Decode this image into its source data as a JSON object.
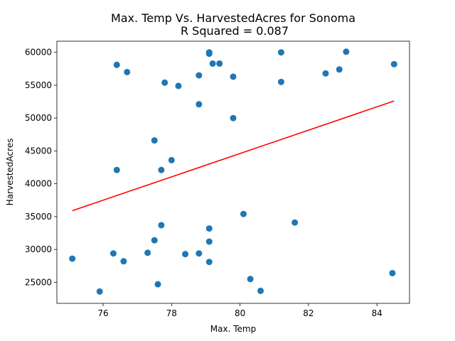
{
  "chart_data": {
    "type": "scatter",
    "title": "Max. Temp Vs. HarvestedAcres for Sonoma",
    "subtitle": "R Squared =  0.087",
    "xlabel": "Max. Temp",
    "ylabel": "HarvestedAcres",
    "xlim": [
      74.65,
      84.95
    ],
    "ylim": [
      21800,
      61700
    ],
    "xticks": [
      76,
      78,
      80,
      82,
      84
    ],
    "yticks": [
      25000,
      30000,
      35000,
      40000,
      45000,
      50000,
      55000,
      60000
    ],
    "xtick_labels": [
      "76",
      "78",
      "80",
      "82",
      "84"
    ],
    "ytick_labels": [
      "25000",
      "30000",
      "35000",
      "40000",
      "45000",
      "50000",
      "55000",
      "60000"
    ],
    "grid": false,
    "marker_color": "#1f77b4",
    "line_color": "#ff0000",
    "points": [
      {
        "x": 75.1,
        "y": 28600
      },
      {
        "x": 75.9,
        "y": 23600
      },
      {
        "x": 76.3,
        "y": 29400
      },
      {
        "x": 76.4,
        "y": 58100
      },
      {
        "x": 76.4,
        "y": 42100
      },
      {
        "x": 76.6,
        "y": 28200
      },
      {
        "x": 76.7,
        "y": 57000
      },
      {
        "x": 77.3,
        "y": 29500
      },
      {
        "x": 77.5,
        "y": 46600
      },
      {
        "x": 77.5,
        "y": 31400
      },
      {
        "x": 77.6,
        "y": 24700
      },
      {
        "x": 77.7,
        "y": 42100
      },
      {
        "x": 77.7,
        "y": 33700
      },
      {
        "x": 77.8,
        "y": 55400
      },
      {
        "x": 78.0,
        "y": 43600
      },
      {
        "x": 78.2,
        "y": 54900
      },
      {
        "x": 78.4,
        "y": 29300
      },
      {
        "x": 78.8,
        "y": 56500
      },
      {
        "x": 78.8,
        "y": 52100
      },
      {
        "x": 78.8,
        "y": 29400
      },
      {
        "x": 79.1,
        "y": 60000
      },
      {
        "x": 79.1,
        "y": 59800
      },
      {
        "x": 79.1,
        "y": 33200
      },
      {
        "x": 79.1,
        "y": 31200
      },
      {
        "x": 79.1,
        "y": 28100
      },
      {
        "x": 79.2,
        "y": 58300
      },
      {
        "x": 79.4,
        "y": 58300
      },
      {
        "x": 79.8,
        "y": 56300
      },
      {
        "x": 79.8,
        "y": 50000
      },
      {
        "x": 80.1,
        "y": 35400
      },
      {
        "x": 80.3,
        "y": 25500
      },
      {
        "x": 80.6,
        "y": 23700
      },
      {
        "x": 81.2,
        "y": 60000
      },
      {
        "x": 81.2,
        "y": 55500
      },
      {
        "x": 81.6,
        "y": 34100
      },
      {
        "x": 82.5,
        "y": 56800
      },
      {
        "x": 82.9,
        "y": 57400
      },
      {
        "x": 83.1,
        "y": 60100
      },
      {
        "x": 84.45,
        "y": 26400
      },
      {
        "x": 84.5,
        "y": 58200
      }
    ],
    "regression_line": {
      "x": [
        75.1,
        84.5
      ],
      "y": [
        35900,
        52600
      ]
    }
  }
}
